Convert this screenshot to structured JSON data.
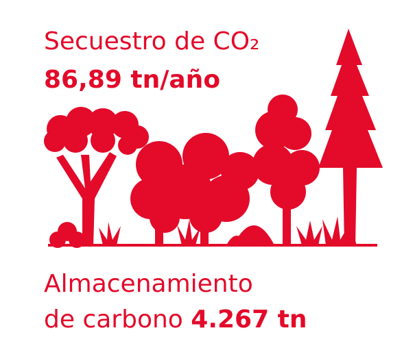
{
  "header": {
    "label": "Secuestro de CO₂",
    "value": "86,89 tn/año"
  },
  "footer": {
    "label_line1": "Almacenamiento",
    "label_line2": "de carbono",
    "value": "4.267 tn"
  }
}
